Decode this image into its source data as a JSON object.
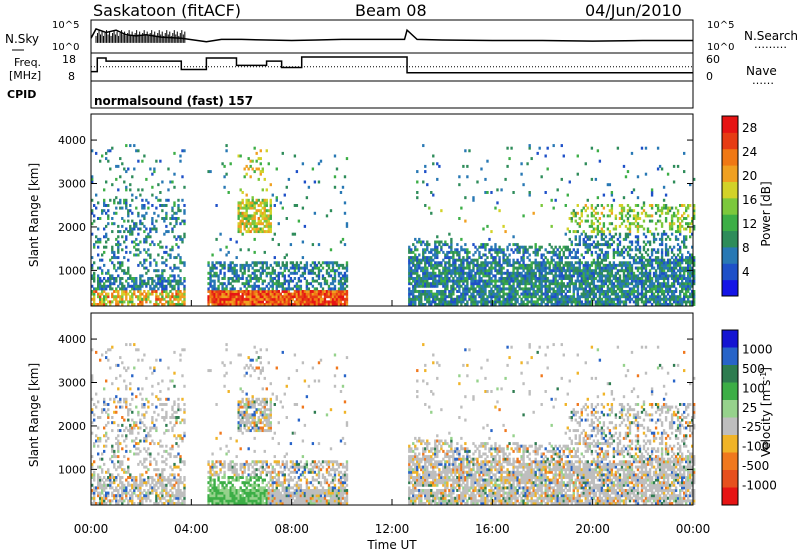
{
  "header": {
    "site": "Saskatoon (fitACF)",
    "beam": "Beam 08",
    "date": "04/Jun/2010"
  },
  "panel_labels": {
    "nsky": "N.Sky",
    "freq_line1": "Freq.",
    "freq_line2": "[MHz]",
    "cpid": "CPID",
    "nsearch": "N.Search",
    "nsearch_style": "………",
    "nave": "Nave",
    "nave_style": "……",
    "cpid_text": "normalsound (fast) 157"
  },
  "colors": {
    "power": [
      "#1414e6",
      "#1e50c8",
      "#2878b4",
      "#2e8c5a",
      "#3cae46",
      "#7cc83c",
      "#d2d228",
      "#f0a020",
      "#f07814",
      "#e63c14",
      "#e61414"
    ],
    "velocity": [
      "#1414d2",
      "#2864c8",
      "#2e7c50",
      "#3cae46",
      "#96d28c",
      "#c8c8c8",
      "#f0b428",
      "#f0781e",
      "#e6501e",
      "#e61414"
    ],
    "grey": "#bebebe"
  },
  "chart_data": [
    {
      "type": "line",
      "title": "N.Sky",
      "yticks": [
        "10^5",
        "10^0"
      ],
      "yticks_right": [
        "10^5",
        "10^0"
      ],
      "series": [
        {
          "name": "N.Sky",
          "x": [
            0.0,
            0.2,
            0.6,
            1.0,
            1.4,
            1.8,
            2.2,
            2.8,
            3.6,
            4.6,
            5.2,
            6.0,
            7.0,
            8.0,
            9.0,
            10.0,
            12.5,
            12.6,
            13.0,
            14.0,
            16.0,
            18.0,
            20.0,
            22.0,
            24.0
          ],
          "y": [
            2.2,
            3.8,
            3.2,
            3.6,
            2.8,
            2.6,
            2.8,
            2.4,
            2.2,
            1.6,
            2.0,
            2.0,
            1.9,
            1.8,
            1.9,
            2.0,
            2.0,
            3.6,
            2.0,
            1.9,
            1.8,
            1.8,
            1.7,
            1.8,
            1.8
          ]
        }
      ]
    },
    {
      "type": "line",
      "yticks": [
        "18",
        "8"
      ],
      "yticks_right": [
        "60",
        "0"
      ],
      "series": [
        {
          "name": "Freq.",
          "x": [
            0.0,
            0.25,
            0.25,
            0.6,
            0.6,
            3.6,
            3.6,
            4.6,
            4.6,
            5.8,
            5.8,
            7.0,
            7.0,
            7.6,
            7.6,
            8.4,
            8.4,
            10.1,
            10.1,
            12.6,
            12.6,
            24.0
          ],
          "y": [
            11.5,
            11.5,
            18.0,
            18.0,
            16.5,
            16.5,
            12.5,
            12.5,
            18.0,
            18.0,
            14.5,
            14.5,
            16.5,
            16.5,
            13.5,
            13.5,
            18.5,
            18.5,
            18.5,
            18.5,
            11.0,
            11.0
          ]
        },
        {
          "name": "Nave",
          "x": [
            0.0,
            24.0
          ],
          "y": [
            35,
            35
          ]
        }
      ]
    },
    {
      "type": "heatmap",
      "title": "Power [dB]",
      "xlabel": "",
      "ylabel": "Slant Range [km]",
      "xlim": [
        0,
        24
      ],
      "ylim": [
        180,
        4600
      ],
      "xticks": [
        "00:00",
        "04:00",
        "08:00",
        "12:00",
        "16:00",
        "20:00",
        "00:00"
      ],
      "yticks": [
        1000,
        2000,
        3000,
        4000
      ],
      "colorbar_label": "Power [dB]",
      "colorbar_ticks": [
        "4",
        "8",
        "12",
        "16",
        "20",
        "24",
        "28"
      ],
      "colorbar_range": [
        0,
        30
      ]
    },
    {
      "type": "heatmap",
      "title": "Velocity [m s^-1]",
      "xlabel": "Time UT",
      "ylabel": "Slant Range [km]",
      "xlim": [
        0,
        24
      ],
      "ylim": [
        180,
        4600
      ],
      "xticks": [
        "00:00",
        "04:00",
        "08:00",
        "12:00",
        "16:00",
        "20:00",
        "00:00"
      ],
      "yticks": [
        1000,
        2000,
        3000,
        4000
      ],
      "colorbar_label": "Velocity [m s^-1]",
      "colorbar_ticks": [
        "1000",
        "500",
        "100",
        "25",
        "-25",
        "-100",
        "-500",
        "-1000"
      ]
    }
  ],
  "axis_labels": {
    "power_cbar_title": "Power [dB]",
    "velocity_cbar_title": "Velocity [m s",
    "velocity_cbar_exp": "-1",
    "velocity_cbar_close": "]",
    "slant_range": "Slant Range [km]",
    "time": "Time UT"
  }
}
